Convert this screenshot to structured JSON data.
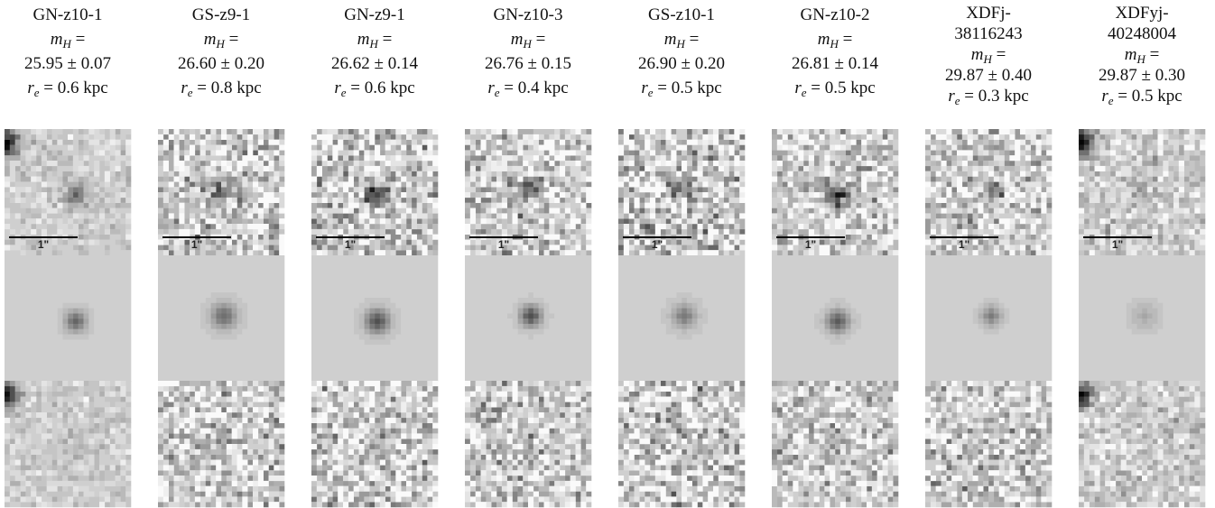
{
  "labels": {
    "magnitude_symbol": "m",
    "magnitude_subscript": "H",
    "radius_symbol": "r",
    "radius_subscript": "e",
    "equals": "=",
    "scale_bar": "1\""
  },
  "panels": [
    {
      "name": "GN-z10-1",
      "magnitude": "25.95 ± 0.07",
      "radius": "0.6 kpc"
    },
    {
      "name": "GS-z9-1",
      "magnitude": "26.60 ± 0.20",
      "radius": "0.8 kpc"
    },
    {
      "name": "GN-z9-1",
      "magnitude": "26.62 ± 0.14",
      "radius": "0.6 kpc"
    },
    {
      "name": "GN-z10-3",
      "magnitude": "26.76 ± 0.15",
      "radius": "0.4 kpc"
    },
    {
      "name": "GS-z10-1",
      "magnitude": "26.90 ± 0.20",
      "radius": "0.5 kpc"
    },
    {
      "name": "GN-z10-2",
      "magnitude": "26.81 ± 0.14",
      "radius": "0.5 kpc"
    },
    {
      "name": "XDFj-38116243",
      "magnitude": "29.87 ± 0.40",
      "radius": "0.3 kpc"
    },
    {
      "name": "XDFyj-40248004",
      "magnitude": "29.87 ± 0.30",
      "radius": "0.5 kpc"
    }
  ]
}
